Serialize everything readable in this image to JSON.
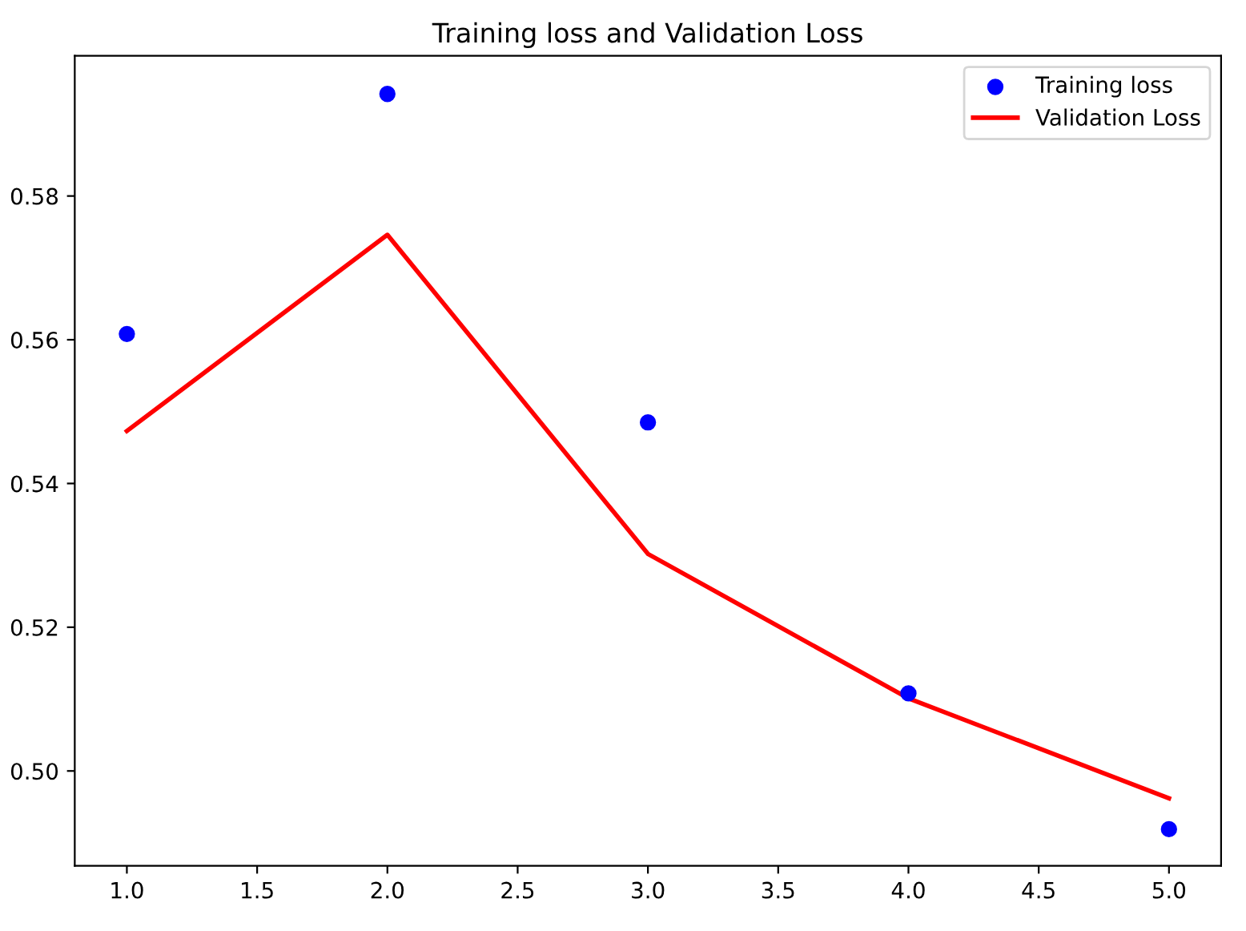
{
  "chart_data": {
    "type": "line",
    "title": "Training loss and Validation Loss",
    "x": [
      1,
      2,
      3,
      4,
      5
    ],
    "series": [
      {
        "name": "Training loss",
        "type": "scatter",
        "color": "#0000ff",
        "marker": "circle",
        "values": [
          0.5608,
          0.5942,
          0.5485,
          0.5108,
          0.4919
        ]
      },
      {
        "name": "Validation Loss",
        "color": "#ff0000",
        "marker": "none",
        "line_style": "solid",
        "values": [
          0.5473,
          0.5746,
          0.5302,
          0.5101,
          0.4962
        ]
      }
    ],
    "xlim": [
      0.8,
      5.2
    ],
    "ylim": [
      0.4868,
      0.5995
    ],
    "xticks": [
      {
        "value": 1,
        "label": "1.0"
      },
      {
        "value": 1.5,
        "label": "1.5"
      },
      {
        "value": 2,
        "label": "2.0"
      },
      {
        "value": 2.5,
        "label": "2.5"
      },
      {
        "value": 3,
        "label": "3.0"
      },
      {
        "value": 3.5,
        "label": "3.5"
      },
      {
        "value": 4,
        "label": "4.0"
      },
      {
        "value": 4.5,
        "label": "4.5"
      },
      {
        "value": 5,
        "label": "5.0"
      }
    ],
    "yticks": [
      {
        "value": 0.5,
        "label": "0.50"
      },
      {
        "value": 0.52,
        "label": "0.52"
      },
      {
        "value": 0.54,
        "label": "0.54"
      },
      {
        "value": 0.56,
        "label": "0.56"
      },
      {
        "value": 0.58,
        "label": "0.58"
      }
    ],
    "grid": false,
    "legend": "top right"
  }
}
